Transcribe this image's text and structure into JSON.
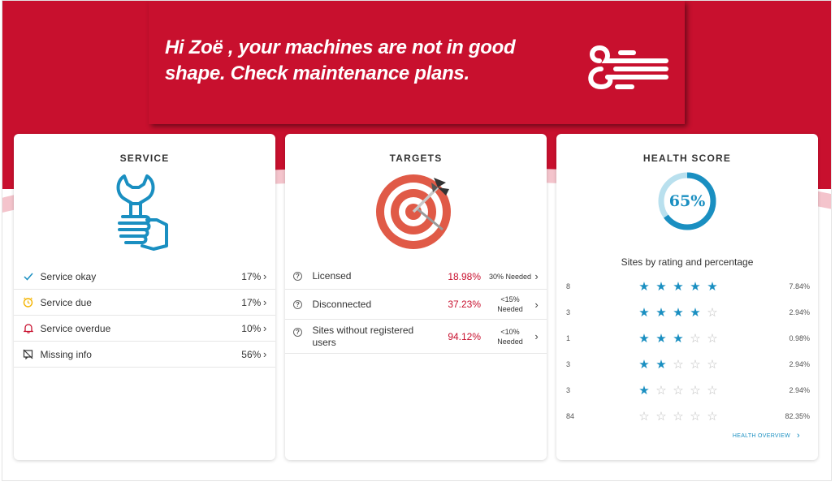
{
  "banner": {
    "message": "Hi Zoë , your machines are not in good shape. Check maintenance plans.",
    "icon": "wind-icon",
    "color": "#c8102e"
  },
  "service": {
    "title": "SERVICE",
    "illustration": "wrench-thumbs-up-icon",
    "rows": [
      {
        "label": "Service okay",
        "value": "17%",
        "icon": "check-icon",
        "color": "#1a8fc1"
      },
      {
        "label": "Service due",
        "value": "17%",
        "icon": "clock-icon",
        "color": "#f4b400"
      },
      {
        "label": "Service overdue",
        "value": "10%",
        "icon": "bell-icon",
        "color": "#c8102e"
      },
      {
        "label": "Missing info",
        "value": "56%",
        "icon": "missing-info-icon",
        "color": "#333333"
      }
    ]
  },
  "targets": {
    "title": "TARGETS",
    "illustration": "target-icon",
    "rows": [
      {
        "label": "Licensed",
        "value": "18.98%",
        "needed": "30% Needed"
      },
      {
        "label": "Disconnected",
        "value": "37.23%",
        "needed_line1": "<15%",
        "needed_line2": "Needed"
      },
      {
        "label": "Sites without registered users",
        "value": "94.12%",
        "needed_line1": "<10%",
        "needed_line2": "Needed"
      }
    ]
  },
  "health": {
    "title": "HEALTH SCORE",
    "score_text": "65%",
    "score_fraction": 0.65,
    "caption": "Sites by rating and percentage",
    "rows": [
      {
        "count": "8",
        "stars": 5,
        "percent": "7.84%"
      },
      {
        "count": "3",
        "stars": 4,
        "percent": "2.94%"
      },
      {
        "count": "1",
        "stars": 3,
        "percent": "0.98%"
      },
      {
        "count": "3",
        "stars": 2,
        "percent": "2.94%"
      },
      {
        "count": "3",
        "stars": 1,
        "percent": "2.94%"
      },
      {
        "count": "84",
        "stars": 0,
        "percent": "82.35%"
      }
    ],
    "link_label": "HEALTH OVERVIEW",
    "accent": "#1a8fc1"
  }
}
